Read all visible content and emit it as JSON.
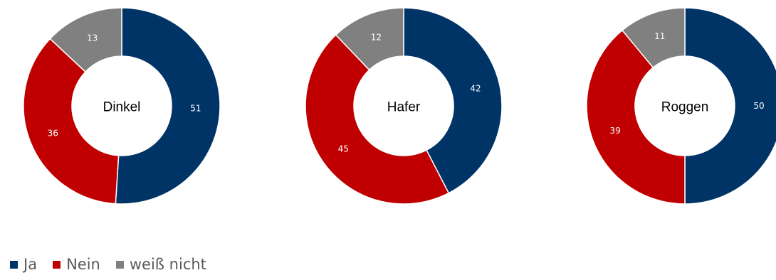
{
  "chart_data": {
    "type": "pie",
    "variant": "donut",
    "legend": [
      "Ja",
      "Nein",
      "weiß nicht"
    ],
    "legend_position": "bottom-left",
    "colors": {
      "Ja": "#003366",
      "Nein": "#C00000",
      "weiß nicht": "#808080"
    },
    "charts": [
      {
        "label": "Dinkel",
        "values": {
          "Ja": 51,
          "Nein": 36,
          "weiß nicht": 13
        }
      },
      {
        "label": "Hafer",
        "values": {
          "Ja": 42,
          "Nein": 45,
          "weiß nicht": 12
        }
      },
      {
        "label": "Roggen",
        "values": {
          "Ja": 50,
          "Nein": 39,
          "weiß nicht": 11
        }
      }
    ]
  }
}
